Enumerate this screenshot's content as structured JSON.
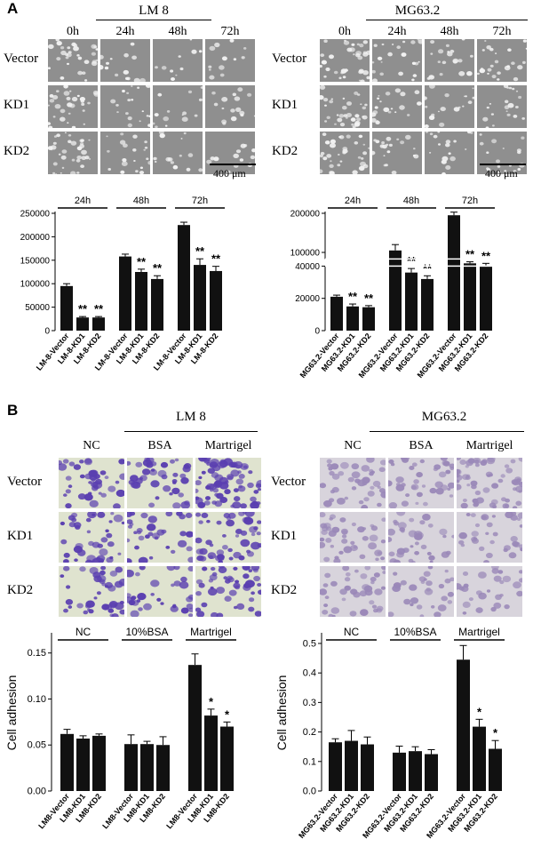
{
  "panels": {
    "a": "A",
    "b": "B"
  },
  "sectionA": {
    "lm8": {
      "title": "LM 8",
      "columns": [
        "0h",
        "24h",
        "48h",
        "72h"
      ],
      "rows": [
        "Vector",
        "KD1",
        "KD2"
      ],
      "scale": "400 μm"
    },
    "mg": {
      "title": "MG63.2",
      "columns": [
        "0h",
        "24h",
        "48h",
        "72h"
      ],
      "rows": [
        "Vector",
        "KD1",
        "KD2"
      ],
      "scale": "400 μm"
    }
  },
  "sectionB": {
    "lm8": {
      "title": "LM 8",
      "columns": [
        "NC",
        "BSA",
        "Martrigel"
      ],
      "rows": [
        "Vector",
        "KD1",
        "KD2"
      ]
    },
    "mg": {
      "title": "MG63.2",
      "columns": [
        "NC",
        "BSA",
        "Martrigel"
      ],
      "rows": [
        "Vector",
        "KD1",
        "KD2"
      ]
    }
  },
  "chart_data": [
    {
      "type": "bar",
      "groups": [
        "24h",
        "48h",
        "72h"
      ],
      "categories": [
        "LM-8-Vector",
        "LM-8-KD1",
        "LM-8-KD2",
        "LM-8-Vector",
        "LM-8-KD1",
        "LM-8-KD2",
        "LM-8-Vector",
        "LM-8-KD1",
        "LM-8-KD2"
      ],
      "values": [
        95000,
        28000,
        28000,
        158000,
        125000,
        110000,
        225000,
        140000,
        127000
      ],
      "errors": [
        5000,
        2000,
        2000,
        5000,
        6000,
        7000,
        6000,
        13000,
        10000
      ],
      "significance": [
        "",
        "**",
        "**",
        "",
        "**",
        "**",
        "",
        "**",
        "**"
      ],
      "ylim": [
        0,
        250000
      ],
      "yticks": [
        0,
        50000,
        100000,
        150000,
        200000,
        250000
      ],
      "grid": false
    },
    {
      "type": "bar",
      "groups": [
        "24h",
        "48h",
        "72h"
      ],
      "categories": [
        "MG63.2-Vector",
        "MG63.2-KD1",
        "MG63.2-KD2",
        "MG63.2-Vector",
        "MG63.2-KD1",
        "MG63.2-KD2",
        "MG63.2-Vector",
        "MG63.2-KD1",
        "MG63.2-KD2"
      ],
      "values": [
        21000,
        15000,
        14500,
        105000,
        36000,
        32000,
        195000,
        72000,
        65000
      ],
      "errors": [
        1000,
        1500,
        1000,
        15000,
        2500,
        2000,
        8000,
        4000,
        7000
      ],
      "significance": [
        "",
        "**",
        "**",
        "",
        "**",
        "**",
        "",
        "**",
        "**"
      ],
      "ylim": [
        0,
        200000
      ],
      "axis_break": [
        40000,
        80000
      ],
      "yticks": [
        0,
        20000,
        40000,
        100000,
        200000
      ],
      "grid": false
    },
    {
      "type": "bar",
      "groups": [
        "NC",
        "10%BSA",
        "Martrigel"
      ],
      "categories": [
        "LM8-Vector",
        "LM8-KD1",
        "LM8-KD2",
        "LM8-Vector",
        "LM8-KD1",
        "LM8-KD2",
        "LM8-Vector",
        "LM8-KD1",
        "LM8-KD2"
      ],
      "values": [
        0.062,
        0.057,
        0.06,
        0.051,
        0.051,
        0.05,
        0.137,
        0.082,
        0.07
      ],
      "errors": [
        0.005,
        0.003,
        0.002,
        0.01,
        0.003,
        0.009,
        0.012,
        0.007,
        0.005
      ],
      "significance": [
        "",
        "",
        "",
        "",
        "",
        "",
        "",
        "*",
        "*"
      ],
      "ylabel": "Cell adhesion",
      "ylim": [
        0,
        0.17
      ],
      "yticks": [
        0.0,
        0.05,
        0.1,
        0.15
      ],
      "grid": false
    },
    {
      "type": "bar",
      "groups": [
        "NC",
        "10%BSA",
        "Martrigel"
      ],
      "categories": [
        "MG63.2-Vector",
        "MG63.2-KD1",
        "MG63.2-KD2",
        "MG63.2-Vector",
        "MG63.2-KD1",
        "MG63.2-KD2",
        "MG63.2-Vector",
        "MG63.2-KD1",
        "MG63.2-KD2"
      ],
      "values": [
        0.165,
        0.17,
        0.158,
        0.13,
        0.135,
        0.125,
        0.445,
        0.218,
        0.143
      ],
      "errors": [
        0.012,
        0.035,
        0.025,
        0.022,
        0.015,
        0.015,
        0.048,
        0.025,
        0.028
      ],
      "significance": [
        "",
        "",
        "",
        "",
        "",
        "",
        "",
        "*",
        "*"
      ],
      "ylabel": "Cell adhesion",
      "ylim": [
        0,
        0.53
      ],
      "yticks": [
        0.0,
        0.1,
        0.2,
        0.3,
        0.4,
        0.5
      ],
      "grid": false
    }
  ]
}
